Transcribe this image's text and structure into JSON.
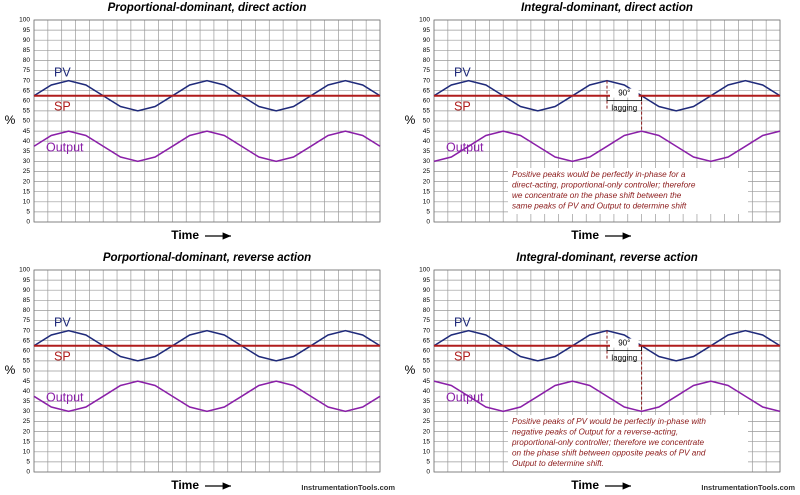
{
  "chart_data": [
    {
      "type": "line",
      "title": "Proportional-dominant, direct action",
      "x_label": "Time",
      "y_label": "%",
      "x": [
        0,
        5,
        10,
        15,
        20,
        25,
        30,
        35,
        40,
        45,
        50,
        55,
        60,
        65,
        70,
        75,
        80,
        85,
        90,
        95,
        100
      ],
      "xlim": [
        0,
        100
      ],
      "ylim": [
        0,
        100
      ],
      "yticks": [
        0,
        5,
        10,
        15,
        20,
        25,
        30,
        35,
        40,
        45,
        50,
        55,
        60,
        65,
        70,
        75,
        80,
        85,
        90,
        95,
        100
      ],
      "grid": true,
      "series": [
        {
          "name": "PV",
          "color": "#1f2a7a",
          "values": [
            62.5,
            67.8,
            70,
            67.8,
            62.5,
            57.2,
            55,
            57.2,
            62.5,
            67.8,
            70,
            67.8,
            62.5,
            57.2,
            55,
            57.2,
            62.5,
            67.8,
            70,
            67.8,
            62.5
          ]
        },
        {
          "name": "SP",
          "color": "#b01c1c",
          "values": [
            62.5,
            62.5,
            62.5,
            62.5,
            62.5,
            62.5,
            62.5,
            62.5,
            62.5,
            62.5,
            62.5,
            62.5,
            62.5,
            62.5,
            62.5,
            62.5,
            62.5,
            62.5,
            62.5,
            62.5,
            62.5
          ]
        },
        {
          "name": "Output",
          "color": "#8a1fa8",
          "values": [
            37.5,
            42.8,
            45,
            42.8,
            37.5,
            32.2,
            30,
            32.2,
            37.5,
            42.8,
            45,
            42.8,
            37.5,
            32.2,
            30,
            32.2,
            37.5,
            42.8,
            45,
            42.8,
            37.5
          ]
        }
      ]
    },
    {
      "type": "line",
      "title": "Porportional-dominant, reverse action",
      "x_label": "Time",
      "y_label": "%",
      "x": [
        0,
        5,
        10,
        15,
        20,
        25,
        30,
        35,
        40,
        45,
        50,
        55,
        60,
        65,
        70,
        75,
        80,
        85,
        90,
        95,
        100
      ],
      "xlim": [
        0,
        100
      ],
      "ylim": [
        0,
        100
      ],
      "yticks": [
        0,
        5,
        10,
        15,
        20,
        25,
        30,
        35,
        40,
        45,
        50,
        55,
        60,
        65,
        70,
        75,
        80,
        85,
        90,
        95,
        100
      ],
      "grid": true,
      "watermark": "InstrumentationTools.com",
      "series": [
        {
          "name": "PV",
          "color": "#1f2a7a",
          "values": [
            62.5,
            67.8,
            70,
            67.8,
            62.5,
            57.2,
            55,
            57.2,
            62.5,
            67.8,
            70,
            67.8,
            62.5,
            57.2,
            55,
            57.2,
            62.5,
            67.8,
            70,
            67.8,
            62.5
          ]
        },
        {
          "name": "SP",
          "color": "#b01c1c",
          "values": [
            62.5,
            62.5,
            62.5,
            62.5,
            62.5,
            62.5,
            62.5,
            62.5,
            62.5,
            62.5,
            62.5,
            62.5,
            62.5,
            62.5,
            62.5,
            62.5,
            62.5,
            62.5,
            62.5,
            62.5,
            62.5
          ]
        },
        {
          "name": "Output",
          "color": "#8a1fa8",
          "values": [
            37.5,
            32.2,
            30,
            32.2,
            37.5,
            42.8,
            45,
            42.8,
            37.5,
            32.2,
            30,
            32.2,
            37.5,
            42.8,
            45,
            42.8,
            37.5,
            32.2,
            30,
            32.2,
            37.5
          ]
        }
      ]
    },
    {
      "type": "line",
      "title": "Integral-dominant, direct action",
      "x_label": "Time",
      "y_label": "%",
      "x": [
        0,
        5,
        10,
        15,
        20,
        25,
        30,
        35,
        40,
        45,
        50,
        55,
        60,
        65,
        70,
        75,
        80,
        85,
        90,
        95,
        100
      ],
      "xlim": [
        0,
        100
      ],
      "ylim": [
        0,
        100
      ],
      "yticks": [
        0,
        5,
        10,
        15,
        20,
        25,
        30,
        35,
        40,
        45,
        50,
        55,
        60,
        65,
        70,
        75,
        80,
        85,
        90,
        95,
        100
      ],
      "grid": true,
      "annotation": {
        "angle": "90°",
        "label": "lagging",
        "note": [
          "Positive peaks would be perfectly in-phase for a",
          "direct-acting, proportional-only controller; therefore",
          "we concentrate on the phase shift between the",
          "same peaks of PV and Output to determine shift"
        ]
      },
      "series": [
        {
          "name": "PV",
          "color": "#1f2a7a",
          "values": [
            62.5,
            67.8,
            70,
            67.8,
            62.5,
            57.2,
            55,
            57.2,
            62.5,
            67.8,
            70,
            67.8,
            62.5,
            57.2,
            55,
            57.2,
            62.5,
            67.8,
            70,
            67.8,
            62.5
          ]
        },
        {
          "name": "SP",
          "color": "#b01c1c",
          "values": [
            62.5,
            62.5,
            62.5,
            62.5,
            62.5,
            62.5,
            62.5,
            62.5,
            62.5,
            62.5,
            62.5,
            62.5,
            62.5,
            62.5,
            62.5,
            62.5,
            62.5,
            62.5,
            62.5,
            62.5,
            62.5
          ]
        },
        {
          "name": "Output",
          "color": "#8a1fa8",
          "values": [
            30,
            32.2,
            37.5,
            42.8,
            45,
            42.8,
            37.5,
            32.2,
            30,
            32.2,
            37.5,
            42.8,
            45,
            42.8,
            37.5,
            32.2,
            30,
            32.2,
            37.5,
            42.8,
            45
          ]
        }
      ]
    },
    {
      "type": "line",
      "title": "Integral-dominant, reverse action",
      "x_label": "Time",
      "y_label": "%",
      "x": [
        0,
        5,
        10,
        15,
        20,
        25,
        30,
        35,
        40,
        45,
        50,
        55,
        60,
        65,
        70,
        75,
        80,
        85,
        90,
        95,
        100
      ],
      "xlim": [
        0,
        100
      ],
      "ylim": [
        0,
        100
      ],
      "yticks": [
        0,
        5,
        10,
        15,
        20,
        25,
        30,
        35,
        40,
        45,
        50,
        55,
        60,
        65,
        70,
        75,
        80,
        85,
        90,
        95,
        100
      ],
      "grid": true,
      "watermark": "InstrumentationTools.com",
      "annotation": {
        "angle": "90°",
        "label": "lagging",
        "note": [
          "Positive peaks of PV would be perfectly in-phase with",
          "negative peaks of Output for a reverse-acting,",
          "proportional-only controller; therefore we concentrate",
          "on the phase shift between opposite peaks of PV and",
          "Output to determine shift."
        ]
      },
      "series": [
        {
          "name": "PV",
          "color": "#1f2a7a",
          "values": [
            62.5,
            67.8,
            70,
            67.8,
            62.5,
            57.2,
            55,
            57.2,
            62.5,
            67.8,
            70,
            67.8,
            62.5,
            57.2,
            55,
            57.2,
            62.5,
            67.8,
            70,
            67.8,
            62.5
          ]
        },
        {
          "name": "SP",
          "color": "#b01c1c",
          "values": [
            62.5,
            62.5,
            62.5,
            62.5,
            62.5,
            62.5,
            62.5,
            62.5,
            62.5,
            62.5,
            62.5,
            62.5,
            62.5,
            62.5,
            62.5,
            62.5,
            62.5,
            62.5,
            62.5,
            62.5,
            62.5
          ]
        },
        {
          "name": "Output",
          "color": "#8a1fa8",
          "values": [
            45,
            42.8,
            37.5,
            32.2,
            30,
            32.2,
            37.5,
            42.8,
            45,
            42.8,
            37.5,
            32.2,
            30,
            32.2,
            37.5,
            42.8,
            45,
            42.8,
            37.5,
            32.2,
            30
          ]
        }
      ]
    }
  ]
}
